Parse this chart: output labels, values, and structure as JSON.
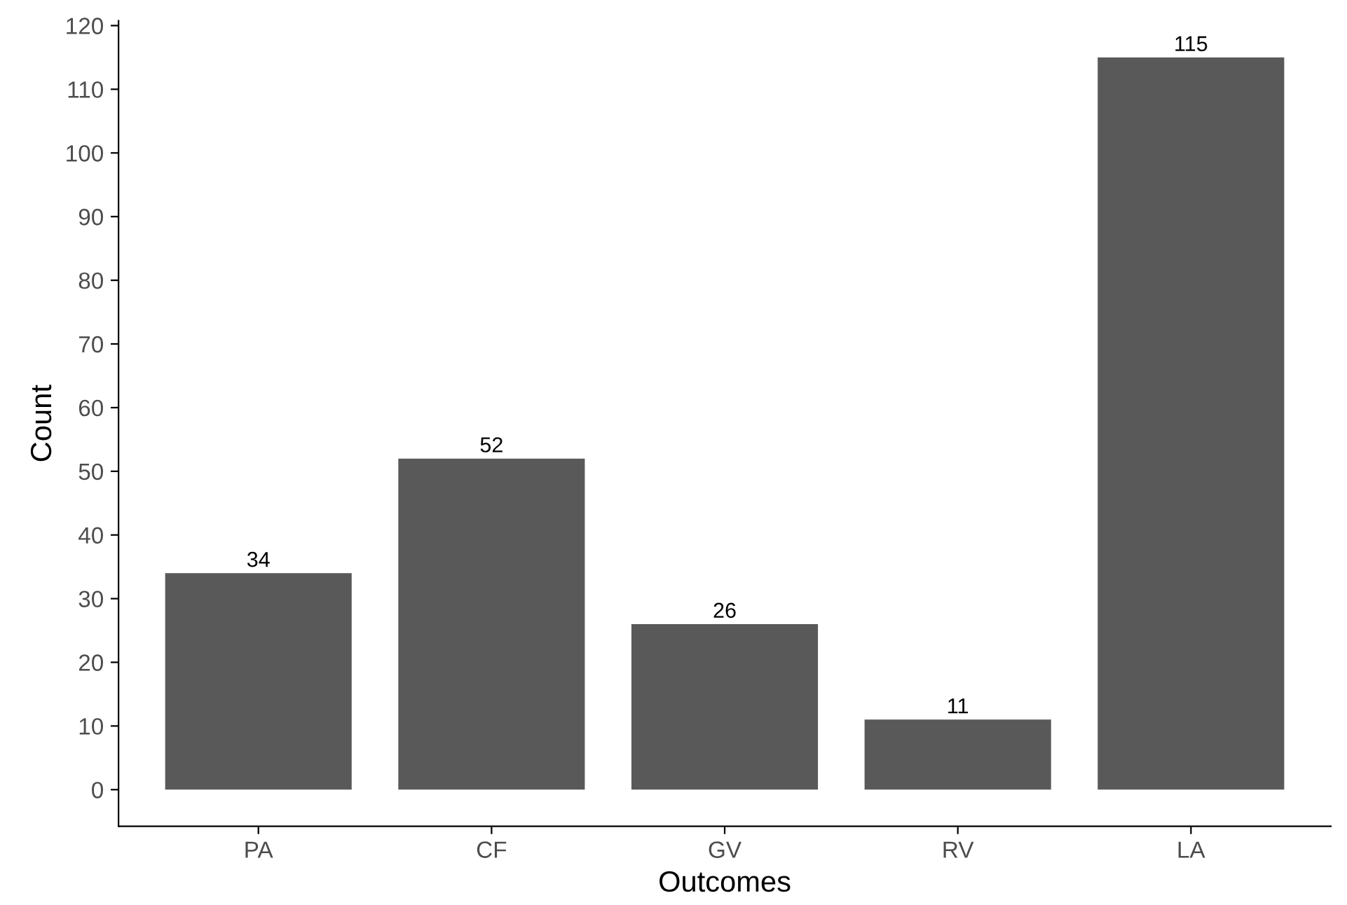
{
  "chart_data": {
    "type": "bar",
    "xlabel": "Outcomes",
    "ylabel": "Count",
    "categories": [
      "PA",
      "CF",
      "GV",
      "RV",
      "LA"
    ],
    "values": [
      34,
      52,
      26,
      11,
      115
    ],
    "color": "#595959",
    "ylim": [
      -5.75,
      120.75
    ],
    "yticks": [
      0,
      10,
      20,
      30,
      40,
      50,
      60,
      70,
      80,
      90,
      100,
      110,
      120
    ],
    "data_labels": true,
    "grid": false,
    "legend": false
  }
}
